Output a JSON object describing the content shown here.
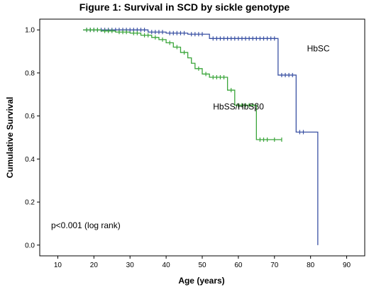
{
  "chart_data": {
    "type": "line",
    "title": "Figure 1: Survival in SCD by sickle genotype",
    "xlabel": "Age (years)",
    "ylabel": "Cumulative Survival",
    "xlim": [
      5,
      95
    ],
    "ylim": [
      -0.05,
      1.05
    ],
    "x_ticks": [
      "10",
      "20",
      "30",
      "40",
      "50",
      "60",
      "70",
      "80",
      "90"
    ],
    "y_ticks": [
      "0.0",
      "0.2",
      "0.4",
      "0.6",
      "0.8",
      "1.0"
    ],
    "grid": false,
    "legend": "none",
    "annotation": "p<0.001 (log rank)",
    "series": [
      {
        "name": "HbSC",
        "color": "#3b52a4",
        "style": "step",
        "points": [
          [
            17,
            1.0
          ],
          [
            30,
            1.0
          ],
          [
            35,
            0.99
          ],
          [
            40,
            0.985
          ],
          [
            46,
            0.98
          ],
          [
            52,
            0.96
          ],
          [
            71,
            0.96
          ],
          [
            71,
            0.79
          ],
          [
            76,
            0.79
          ],
          [
            76,
            0.525
          ],
          [
            82,
            0.525
          ],
          [
            82,
            0.0
          ]
        ],
        "censored": [
          18,
          19,
          20,
          21,
          22,
          23,
          24,
          25,
          26,
          27,
          28,
          29,
          30,
          31,
          32,
          33,
          34,
          36,
          37,
          38,
          39,
          41,
          42,
          43,
          44,
          45,
          47,
          48,
          49,
          50,
          53,
          54,
          55,
          56,
          57,
          58,
          59,
          60,
          61,
          62,
          63,
          64,
          65,
          66,
          67,
          68,
          69,
          70,
          72,
          73,
          74,
          75,
          77,
          78
        ]
      },
      {
        "name": "HbSS/HbSβ0",
        "color": "#3aa53a",
        "style": "step",
        "points": [
          [
            17,
            1.0
          ],
          [
            22,
            0.995
          ],
          [
            26,
            0.99
          ],
          [
            30,
            0.985
          ],
          [
            33,
            0.975
          ],
          [
            36,
            0.965
          ],
          [
            38,
            0.955
          ],
          [
            40,
            0.94
          ],
          [
            42,
            0.92
          ],
          [
            44,
            0.895
          ],
          [
            46,
            0.87
          ],
          [
            47,
            0.845
          ],
          [
            48,
            0.82
          ],
          [
            50,
            0.795
          ],
          [
            52,
            0.78
          ],
          [
            57,
            0.78
          ],
          [
            57,
            0.72
          ],
          [
            59,
            0.72
          ],
          [
            59,
            0.65
          ],
          [
            65,
            0.65
          ],
          [
            65,
            0.49
          ],
          [
            72,
            0.49
          ]
        ],
        "censored": [
          18,
          19,
          20,
          21,
          23,
          24,
          25,
          27,
          28,
          29,
          31,
          32,
          34,
          35,
          37,
          39,
          41,
          43,
          45,
          49,
          51,
          53,
          54,
          55,
          56,
          58,
          60,
          61,
          62,
          63,
          64,
          66,
          67,
          68,
          70,
          72
        ]
      }
    ],
    "labels": [
      {
        "text": "HbSC",
        "x": 79,
        "y": 0.9
      },
      {
        "text": "HbSS/HbSβ0",
        "x": 53,
        "y": 0.63
      }
    ]
  }
}
